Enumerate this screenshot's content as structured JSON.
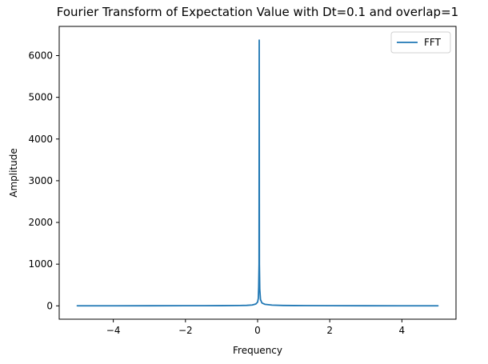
{
  "chart_data": {
    "type": "line",
    "title": "Fourier Transform of Expectation Value with Dt=0.1 and overlap=1",
    "xlabel": "Frequency",
    "ylabel": "Amplitude",
    "xlim": [
      -5.5,
      5.5
    ],
    "ylim": [
      -320,
      6700
    ],
    "xticks": [
      -4,
      -2,
      0,
      2,
      4
    ],
    "yticks": [
      0,
      1000,
      2000,
      3000,
      4000,
      5000,
      6000
    ],
    "grid": false,
    "legend": "top-right",
    "series": [
      {
        "name": "FFT",
        "color": "#1f77b4",
        "points": [
          [
            -5.0,
            1
          ],
          [
            -4.0,
            1
          ],
          [
            -3.0,
            2
          ],
          [
            -2.0,
            3
          ],
          [
            -1.0,
            5
          ],
          [
            -0.5,
            8
          ],
          [
            -0.3,
            12
          ],
          [
            -0.15,
            20
          ],
          [
            -0.05,
            45
          ],
          [
            0.0,
            90
          ],
          [
            0.02,
            180
          ],
          [
            0.03,
            450
          ],
          [
            0.04,
            1000
          ],
          [
            0.045,
            6370
          ],
          [
            0.05,
            1000
          ],
          [
            0.06,
            400
          ],
          [
            0.08,
            150
          ],
          [
            0.12,
            70
          ],
          [
            0.2,
            38
          ],
          [
            0.4,
            18
          ],
          [
            0.7,
            10
          ],
          [
            1.0,
            7
          ],
          [
            2.0,
            4
          ],
          [
            3.0,
            2
          ],
          [
            4.0,
            1
          ],
          [
            5.0,
            1
          ]
        ]
      }
    ]
  }
}
